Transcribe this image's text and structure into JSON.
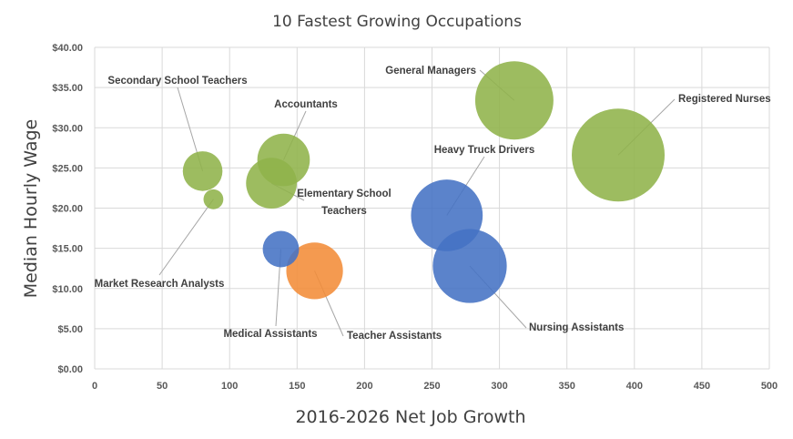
{
  "chart_data": {
    "type": "bubble",
    "title": "10 Fastest  Growing Occupations",
    "xlabel": "2016-2026 Net Job Growth",
    "ylabel": "Median Hourly Wage",
    "xlim": [
      0,
      500
    ],
    "ylim": [
      0,
      40
    ],
    "x_ticks": [
      "0",
      "50",
      "100",
      "150",
      "200",
      "250",
      "300",
      "350",
      "400",
      "450",
      "500"
    ],
    "y_ticks": [
      "$0.00",
      "$5.00",
      "$10.00",
      "$15.00",
      "$20.00",
      "$25.00",
      "$30.00",
      "$35.00",
      "$40.00"
    ],
    "grid": true,
    "colors": {
      "green": "#8fb34a",
      "blue": "#4472c4",
      "orange": "#f28c38"
    },
    "points": [
      {
        "name": "Registered Nurses",
        "x": 388,
        "y": 26.6,
        "size": 438,
        "color": "green",
        "label": [
          "Registered Nurses"
        ]
      },
      {
        "name": "General Managers",
        "x": 311,
        "y": 33.4,
        "size": 311,
        "color": "green",
        "label": [
          "General Managers"
        ]
      },
      {
        "name": "Nursing Assistants",
        "x": 278,
        "y": 12.8,
        "size": 278,
        "color": "blue",
        "label": [
          "Nursing Assistants"
        ]
      },
      {
        "name": "Heavy Truck Drivers",
        "x": 261,
        "y": 19.1,
        "size": 261,
        "color": "blue",
        "label": [
          "Heavy Truck Drivers"
        ]
      },
      {
        "name": "Teacher Assistants",
        "x": 163,
        "y": 12.2,
        "size": 163,
        "color": "orange",
        "label": [
          "Teacher Assistants"
        ]
      },
      {
        "name": "Accountants",
        "x": 140,
        "y": 26.0,
        "size": 140,
        "color": "green",
        "label": [
          "Accountants"
        ]
      },
      {
        "name": "Elementary School Teachers",
        "x": 131,
        "y": 23.1,
        "size": 131,
        "color": "green",
        "label": [
          "Elementary School",
          "Teachers"
        ]
      },
      {
        "name": "Medical Assistants",
        "x": 138,
        "y": 14.9,
        "size": 67,
        "color": "blue",
        "label": [
          "Medical Assistants"
        ]
      },
      {
        "name": "Secondary School Teachers",
        "x": 80,
        "y": 24.6,
        "size": 80,
        "color": "green",
        "label": [
          "Secondary School Teachers"
        ]
      },
      {
        "name": "Market Research Analysts",
        "x": 88,
        "y": 21.1,
        "size": 20,
        "color": "green",
        "label": [
          "Market Research Analysts"
        ]
      }
    ]
  }
}
